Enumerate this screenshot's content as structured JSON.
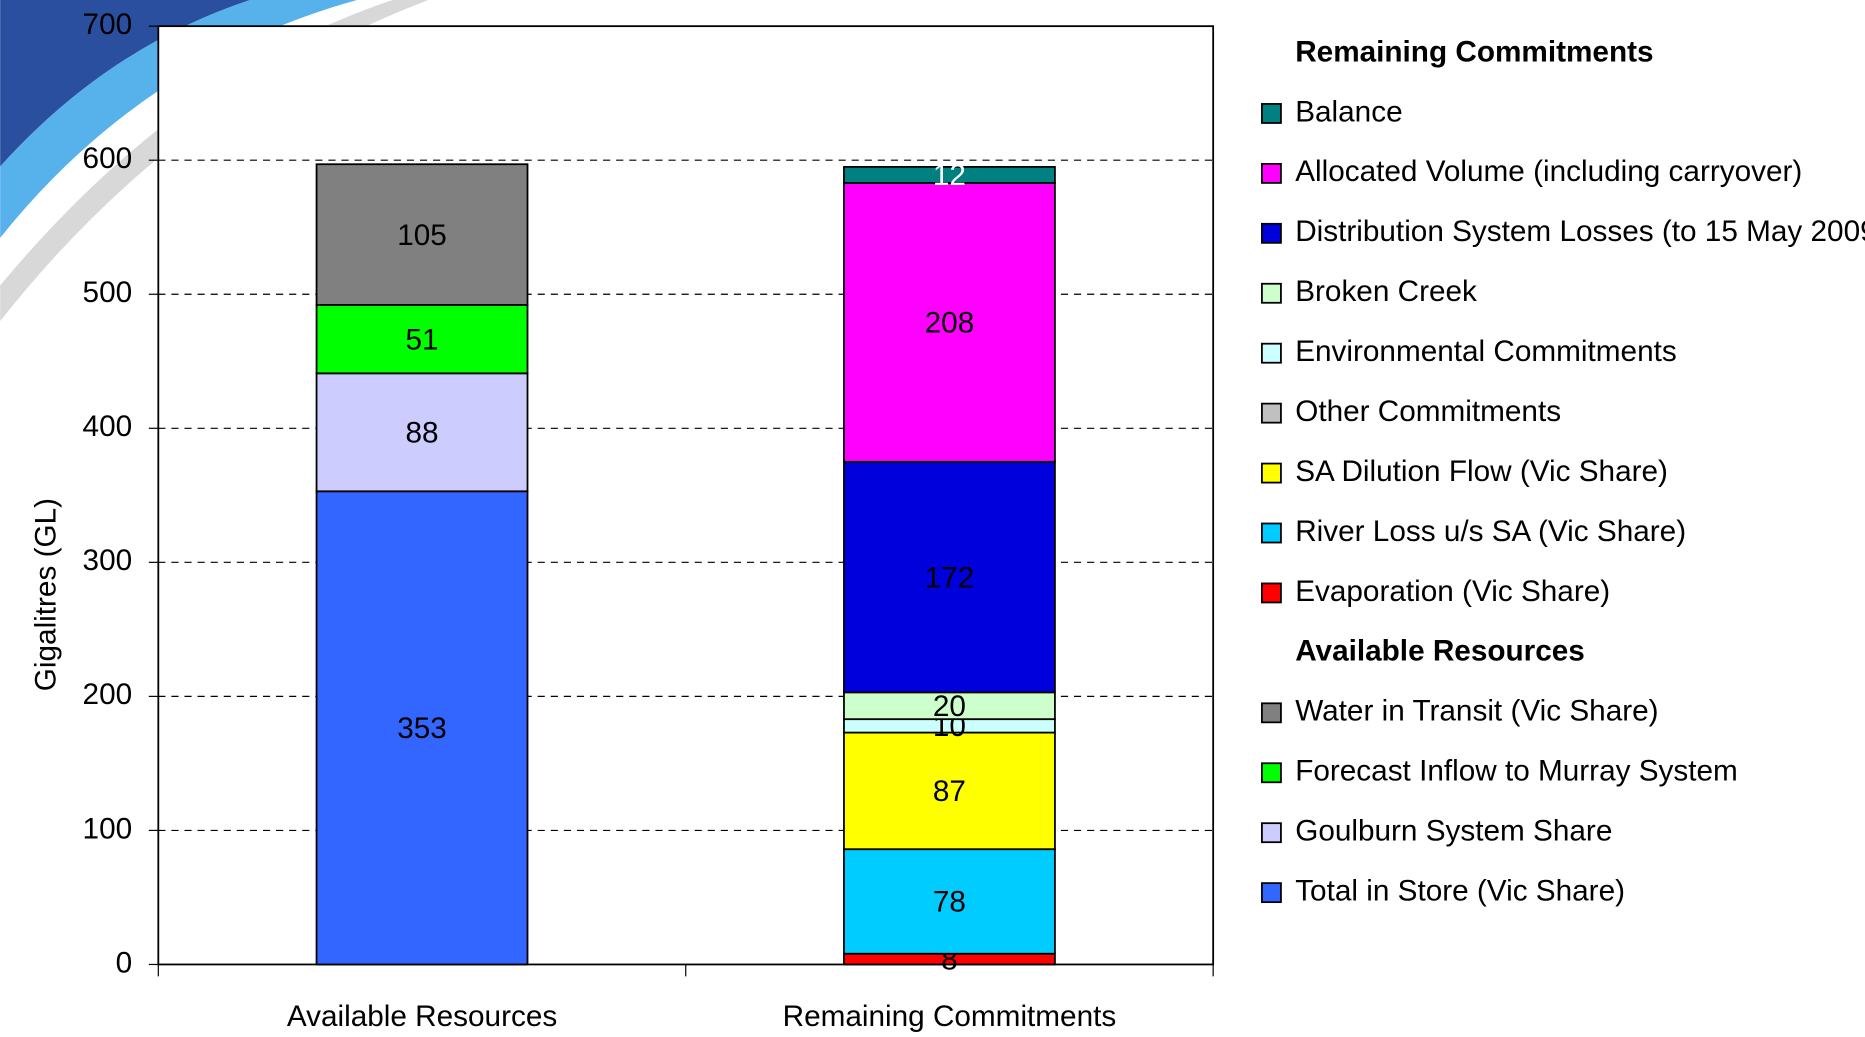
{
  "chart_data": {
    "type": "stacked_bar",
    "y_axis_label": "Gigalitres (GL)",
    "categories": [
      "Available Resources",
      "Remaining Commitments"
    ],
    "ylim": [
      0,
      700
    ],
    "yticks": [
      0,
      100,
      200,
      300,
      400,
      500,
      600,
      700
    ],
    "grid": true,
    "series": [
      {
        "name": "Total in Store (Vic Share)",
        "color": "#3366ff",
        "values": [
          353,
          null
        ]
      },
      {
        "name": "Goulburn System Share",
        "color": "#ccccff",
        "values": [
          88,
          null
        ]
      },
      {
        "name": "Forecast Inflow to Murray System",
        "color": "#00ff00",
        "values": [
          51,
          null
        ]
      },
      {
        "name": "Water in Transit (Vic Share)",
        "color": "#808080",
        "values": [
          105,
          null
        ]
      },
      {
        "name": "Evaporation (Vic Share)",
        "color": "#ff0000",
        "values": [
          null,
          8
        ]
      },
      {
        "name": "River Loss u/s SA (Vic Share)",
        "color": "#00ccff",
        "values": [
          null,
          78
        ]
      },
      {
        "name": "SA Dilution Flow (Vic Share)",
        "color": "#ffff00",
        "values": [
          null,
          87
        ]
      },
      {
        "name": "Other Commitments",
        "color": "#c0c0c0",
        "values": [
          null,
          0
        ]
      },
      {
        "name": "Environmental Commitments",
        "color": "#ccffff",
        "values": [
          null,
          10
        ]
      },
      {
        "name": "Broken Creek",
        "color": "#ccffcc",
        "values": [
          null,
          20
        ]
      },
      {
        "name": "Distribution System Losses (to 15 May 2009)",
        "color": "#0000dd",
        "values": [
          null,
          172
        ]
      },
      {
        "name": "Allocated Volume (including carryover)",
        "color": "#ff00ff",
        "values": [
          null,
          208
        ]
      },
      {
        "name": "Balance",
        "color": "#008080",
        "label_color": "#ffffff",
        "values": [
          null,
          12
        ]
      }
    ]
  }
}
